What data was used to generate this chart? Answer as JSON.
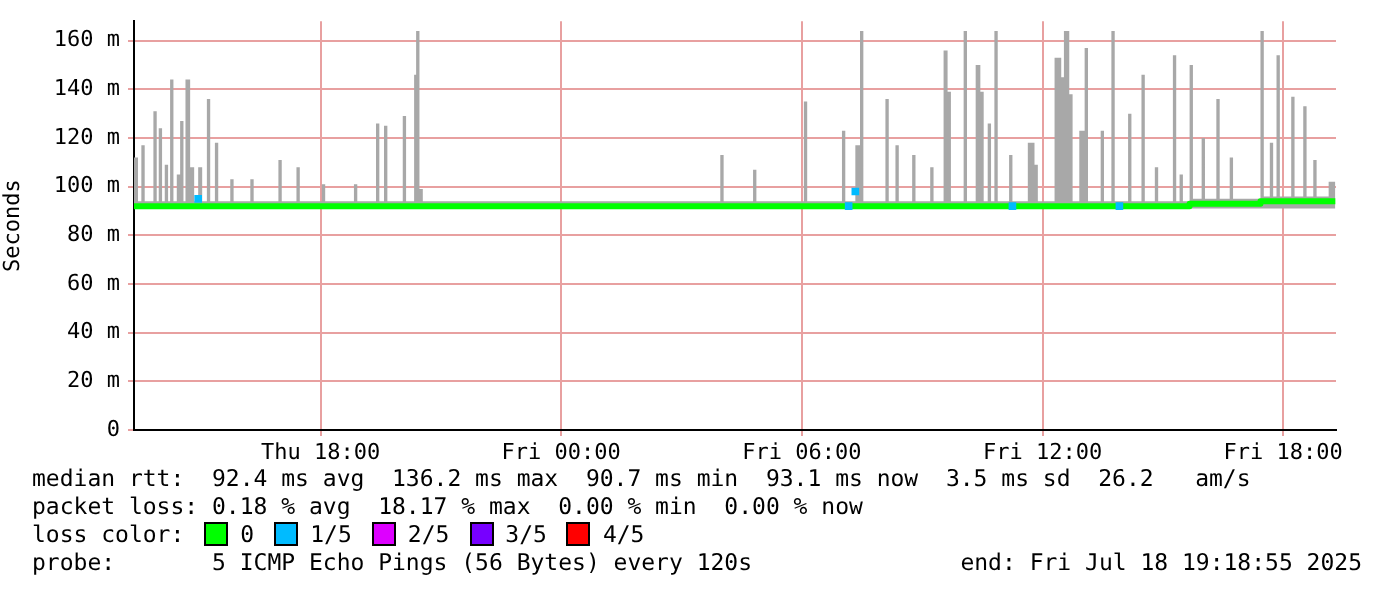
{
  "chart_data": {
    "type": "step",
    "ylabel": "Seconds",
    "xlim": [
      "2025-07-17T13:21",
      "2025-07-18T19:19"
    ],
    "xticks": [
      {
        "value": "2025-07-17T18:00",
        "label": "Thu 18:00"
      },
      {
        "value": "2025-07-18T00:00",
        "label": "Fri 00:00"
      },
      {
        "value": "2025-07-18T06:00",
        "label": "Fri 06:00"
      },
      {
        "value": "2025-07-18T12:00",
        "label": "Fri 12:00"
      },
      {
        "value": "2025-07-18T18:00",
        "label": "Fri 18:00"
      }
    ],
    "ylim": [
      0,
      168
    ],
    "yticks": [
      0,
      {
        "value": 20,
        "label": "20 m"
      },
      {
        "value": 40,
        "label": "40 m"
      },
      {
        "value": 60,
        "label": "60 m"
      },
      {
        "value": 80,
        "label": "80 m"
      },
      {
        "value": 100,
        "label": "100 m"
      },
      {
        "value": 120,
        "label": "120 m"
      },
      {
        "value": 140,
        "label": "140 m"
      },
      {
        "value": 160,
        "label": "160 m"
      }
    ],
    "grid": true,
    "legend": "bottom",
    "legend_title": "loss color:",
    "series": [
      {
        "name": "0",
        "color": "#00ff00",
        "x": [
          "2025-07-17T13:21",
          "2025-07-17T13:27",
          "2025-07-17T13:32",
          "2025-07-17T13:37",
          "2025-07-17T13:50",
          "2025-07-17T13:55",
          "2025-07-17T13:58",
          "2025-07-17T14:03",
          "2025-07-17T14:07",
          "2025-07-17T14:12",
          "2025-07-17T14:15",
          "2025-07-17T14:20",
          "2025-07-17T14:25",
          "2025-07-17T14:30",
          "2025-07-17T14:35",
          "2025-07-17T14:38",
          "2025-07-17T14:45",
          "2025-07-17T14:51",
          "2025-07-17T14:57",
          "2025-07-17T15:03",
          "2025-07-17T15:10",
          "2025-07-17T15:15",
          "2025-07-17T15:22",
          "2025-07-17T15:27",
          "2025-07-17T15:45",
          "2025-07-17T15:50",
          "2025-07-17T16:15",
          "2025-07-17T16:20",
          "2025-07-17T16:57",
          "2025-07-17T17:02",
          "2025-07-17T17:24",
          "2025-07-17T17:29",
          "2025-07-17T18:02",
          "2025-07-17T18:07",
          "2025-07-17T18:50",
          "2025-07-17T18:55",
          "2025-07-17T19:23",
          "2025-07-17T19:28",
          "2025-07-17T19:35",
          "2025-07-17T19:40",
          "2025-07-17T20:03",
          "2025-07-17T20:08",
          "2025-07-17T20:20",
          "2025-07-17T20:23",
          "2025-07-17T20:28",
          "2025-07-17T20:33",
          "2025-07-18T00:00",
          "2025-07-18T03:58",
          "2025-07-18T04:03",
          "2025-07-18T04:47",
          "2025-07-18T04:52",
          "2025-07-18T06:03",
          "2025-07-18T06:08",
          "2025-07-18T07:00",
          "2025-07-18T07:05",
          "2025-07-18T07:20",
          "2025-07-18T07:27",
          "2025-07-18T07:32",
          "2025-07-18T08:05",
          "2025-07-18T08:10",
          "2025-07-18T08:20",
          "2025-07-18T08:25",
          "2025-07-18T08:45",
          "2025-07-18T08:50",
          "2025-07-18T09:12",
          "2025-07-18T09:17",
          "2025-07-18T09:32",
          "2025-07-18T09:38",
          "2025-07-18T09:43",
          "2025-07-18T10:02",
          "2025-07-18T10:07",
          "2025-07-18T10:20",
          "2025-07-18T10:27",
          "2025-07-18T10:32",
          "2025-07-18T10:38",
          "2025-07-18T10:43",
          "2025-07-18T10:48",
          "2025-07-18T10:53",
          "2025-07-18T11:10",
          "2025-07-18T11:15",
          "2025-07-18T11:38",
          "2025-07-18T11:48",
          "2025-07-18T11:53",
          "2025-07-18T12:18",
          "2025-07-18T12:28",
          "2025-07-18T12:32",
          "2025-07-18T12:40",
          "2025-07-18T12:45",
          "2025-07-18T12:55",
          "2025-07-18T13:03",
          "2025-07-18T13:08",
          "2025-07-18T13:27",
          "2025-07-18T13:32",
          "2025-07-18T13:43",
          "2025-07-18T13:48",
          "2025-07-18T14:08",
          "2025-07-18T14:13",
          "2025-07-18T14:28",
          "2025-07-18T14:33",
          "2025-07-18T14:48",
          "2025-07-18T14:53",
          "2025-07-18T15:15",
          "2025-07-18T15:20",
          "2025-07-18T15:25",
          "2025-07-18T15:30",
          "2025-07-18T15:40",
          "2025-07-18T15:45",
          "2025-07-18T15:58",
          "2025-07-18T16:03",
          "2025-07-18T16:20",
          "2025-07-18T16:25",
          "2025-07-18T16:40",
          "2025-07-18T16:45",
          "2025-07-18T17:26",
          "2025-07-18T17:31",
          "2025-07-18T17:40",
          "2025-07-18T17:45",
          "2025-07-18T17:50",
          "2025-07-18T17:55",
          "2025-07-18T18:12",
          "2025-07-18T18:17",
          "2025-07-18T18:30",
          "2025-07-18T18:35",
          "2025-07-18T18:45",
          "2025-07-18T18:50",
          "2025-07-18T19:08",
          "2025-07-18T19:18"
        ],
        "values": [
          92,
          92,
          92,
          92,
          92,
          92,
          92,
          92,
          92,
          92,
          92,
          92,
          92,
          92,
          92,
          92,
          92,
          92,
          92,
          92,
          92,
          92,
          92,
          92,
          92,
          92,
          92,
          92,
          92,
          92,
          92,
          92,
          92,
          92,
          92,
          92,
          92,
          92,
          92,
          92,
          92,
          92,
          92,
          92,
          92,
          92,
          92,
          92,
          92,
          92,
          92,
          92,
          92,
          92,
          92,
          92,
          92,
          92,
          92,
          92,
          92,
          92,
          92,
          92,
          92,
          92,
          92,
          92,
          92,
          92,
          92,
          92,
          92,
          92,
          92,
          92,
          92,
          92,
          92,
          92,
          92,
          92,
          92,
          92,
          92,
          92,
          92,
          92,
          92,
          92,
          92,
          92,
          92,
          92,
          92,
          92,
          92,
          92,
          92,
          92,
          92,
          92,
          92,
          92,
          92,
          93,
          93,
          93,
          93,
          93,
          93,
          93,
          93,
          94,
          94,
          94,
          94,
          94,
          94,
          94,
          94,
          94,
          94,
          94,
          94,
          94,
          94
        ],
        "upper": [
          112,
          94,
          117,
          94,
          131,
          94,
          124,
          94,
          109,
          94,
          144,
          94,
          105,
          127,
          94,
          144,
          108,
          94,
          108,
          94,
          136,
          94,
          118,
          94,
          103,
          94,
          103,
          94,
          111,
          94,
          108,
          94,
          101,
          94,
          101,
          94,
          126,
          94,
          125,
          94,
          129,
          94,
          146,
          164,
          99,
          94,
          94,
          113,
          94,
          107,
          94,
          135,
          94,
          123,
          94,
          117,
          164,
          94,
          136,
          94,
          117,
          94,
          113,
          94,
          108,
          94,
          156,
          139,
          94,
          164,
          94,
          150,
          139,
          94,
          126,
          94,
          164,
          94,
          113,
          94,
          118,
          109,
          94,
          153,
          145,
          164,
          138,
          94,
          123,
          157,
          94,
          123,
          94,
          164,
          94,
          130,
          94,
          146,
          94,
          108,
          94,
          154,
          94,
          105,
          94,
          150,
          95,
          120,
          95,
          136,
          95,
          112,
          95,
          164,
          96,
          118,
          96,
          154,
          96,
          137,
          96,
          133,
          96,
          111,
          96,
          102,
          96
        ],
        "lower": [
          91,
          91,
          91,
          91,
          91,
          91,
          91,
          91,
          91,
          91,
          91,
          91,
          91,
          91,
          91,
          91,
          91,
          91,
          91,
          91,
          91,
          91,
          91,
          91,
          91,
          91,
          91,
          91,
          91,
          91,
          91,
          91,
          91,
          91,
          91,
          91,
          91,
          91,
          91,
          91,
          91,
          91,
          91,
          91,
          91,
          91,
          91,
          91,
          91,
          91,
          91,
          91,
          91,
          91,
          91,
          91,
          91,
          91,
          91,
          91,
          91,
          91,
          91,
          91,
          91,
          91,
          91,
          91,
          91,
          91,
          91,
          91,
          91,
          91,
          91,
          91,
          91,
          91,
          91,
          91,
          91,
          91,
          91,
          91,
          91,
          91,
          91,
          91,
          91,
          91,
          91,
          91,
          91,
          91,
          91,
          91,
          91,
          91,
          91,
          91,
          91,
          91,
          91,
          91,
          91,
          91,
          91,
          91,
          91,
          91,
          91,
          91,
          91,
          91,
          91,
          91,
          91,
          91,
          91,
          91,
          91,
          91,
          91,
          91,
          91,
          91,
          91
        ]
      },
      {
        "name": "1/5",
        "type": "scatter",
        "color": "#00bbff",
        "x": [
          "2025-07-17T14:57",
          "2025-07-18T07:10",
          "2025-07-18T07:20",
          "2025-07-18T11:15",
          "2025-07-18T13:55"
        ],
        "values": [
          95,
          92,
          98,
          92,
          92
        ]
      },
      {
        "name": "2/5",
        "type": "scatter",
        "color": "#dd00ff"
      },
      {
        "name": "3/5",
        "type": "scatter",
        "color": "#7700ff"
      },
      {
        "name": "4/5",
        "type": "scatter",
        "color": "#ff0000"
      }
    ],
    "annotations": [
      "median rtt:  92.4 ms avg  136.2 ms max  90.7 ms min  93.1 ms now  3.5 ms sd  26.2   am/s",
      "packet loss: 0.18 % avg  18.17 % max  0.00 % min  0.00 % now",
      "probe:       5 ICMP Echo Pings (56 Bytes) every 120s",
      "end: Fri Jul 18 19:18:55 2025"
    ]
  }
}
